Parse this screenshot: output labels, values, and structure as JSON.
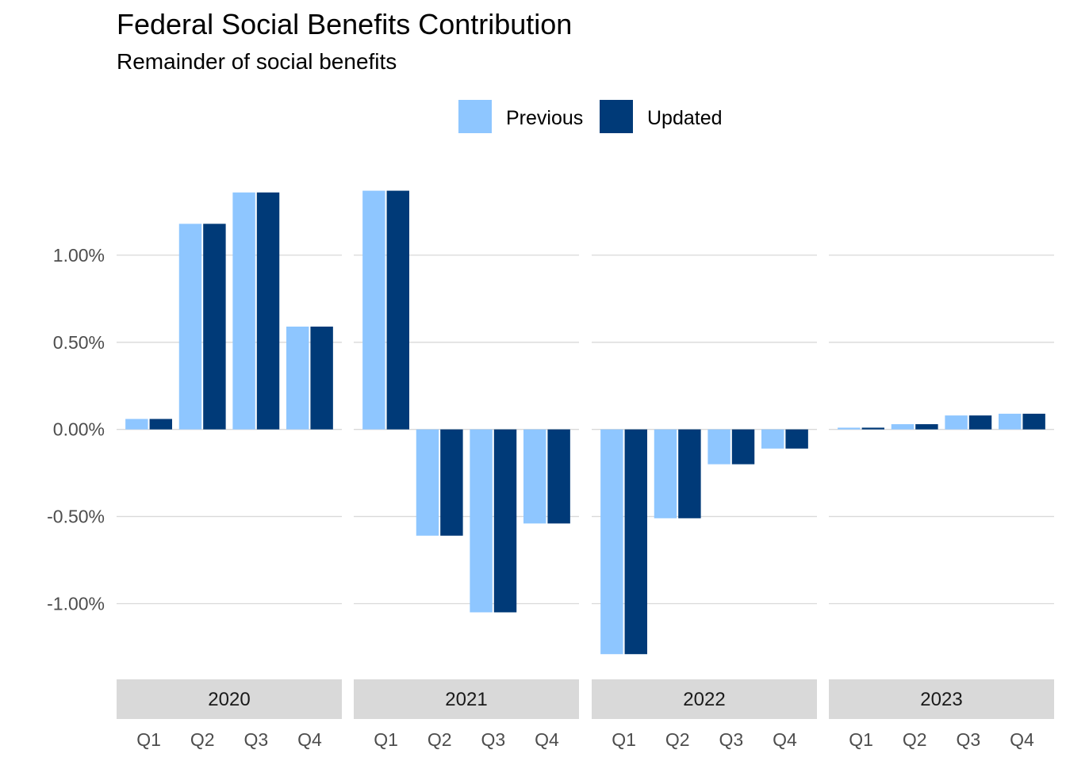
{
  "chart_data": {
    "type": "bar",
    "title": "Federal Social Benefits Contribution",
    "subtitle": "Remainder of social benefits",
    "xlabel": "",
    "ylabel": "",
    "ylim": [
      -1.38,
      1.5
    ],
    "y_ticks": [
      "1.00%",
      "0.50%",
      "0.00%",
      "-0.50%",
      "-1.00%"
    ],
    "y_tick_values": [
      1.0,
      0.5,
      0.0,
      -0.5,
      -1.0
    ],
    "grid": "horizontal",
    "legend_position": "top",
    "categories": [
      "Q1",
      "Q2",
      "Q3",
      "Q4"
    ],
    "series_names": [
      "Previous",
      "Updated"
    ],
    "series_colors": [
      "#8ec6ff",
      "#003a78"
    ],
    "panels": [
      {
        "facet": "2020",
        "series": [
          {
            "name": "Previous",
            "values": [
              0.06,
              1.18,
              1.36,
              0.59
            ]
          },
          {
            "name": "Updated",
            "values": [
              0.06,
              1.18,
              1.36,
              0.59
            ]
          }
        ]
      },
      {
        "facet": "2021",
        "series": [
          {
            "name": "Previous",
            "values": [
              1.37,
              -0.61,
              -1.05,
              -0.54
            ]
          },
          {
            "name": "Updated",
            "values": [
              1.37,
              -0.61,
              -1.05,
              -0.54
            ]
          }
        ]
      },
      {
        "facet": "2022",
        "series": [
          {
            "name": "Previous",
            "values": [
              -1.29,
              -0.51,
              -0.2,
              -0.11
            ]
          },
          {
            "name": "Updated",
            "values": [
              -1.29,
              -0.51,
              -0.2,
              -0.11
            ]
          }
        ]
      },
      {
        "facet": "2023",
        "series": [
          {
            "name": "Previous",
            "values": [
              0.01,
              0.03,
              0.08,
              0.09
            ]
          },
          {
            "name": "Updated",
            "values": [
              0.01,
              0.03,
              0.08,
              0.09
            ]
          }
        ]
      }
    ]
  },
  "colors": {
    "strip_background": "#d9d9d9",
    "gridline": "#d9d9d9"
  }
}
